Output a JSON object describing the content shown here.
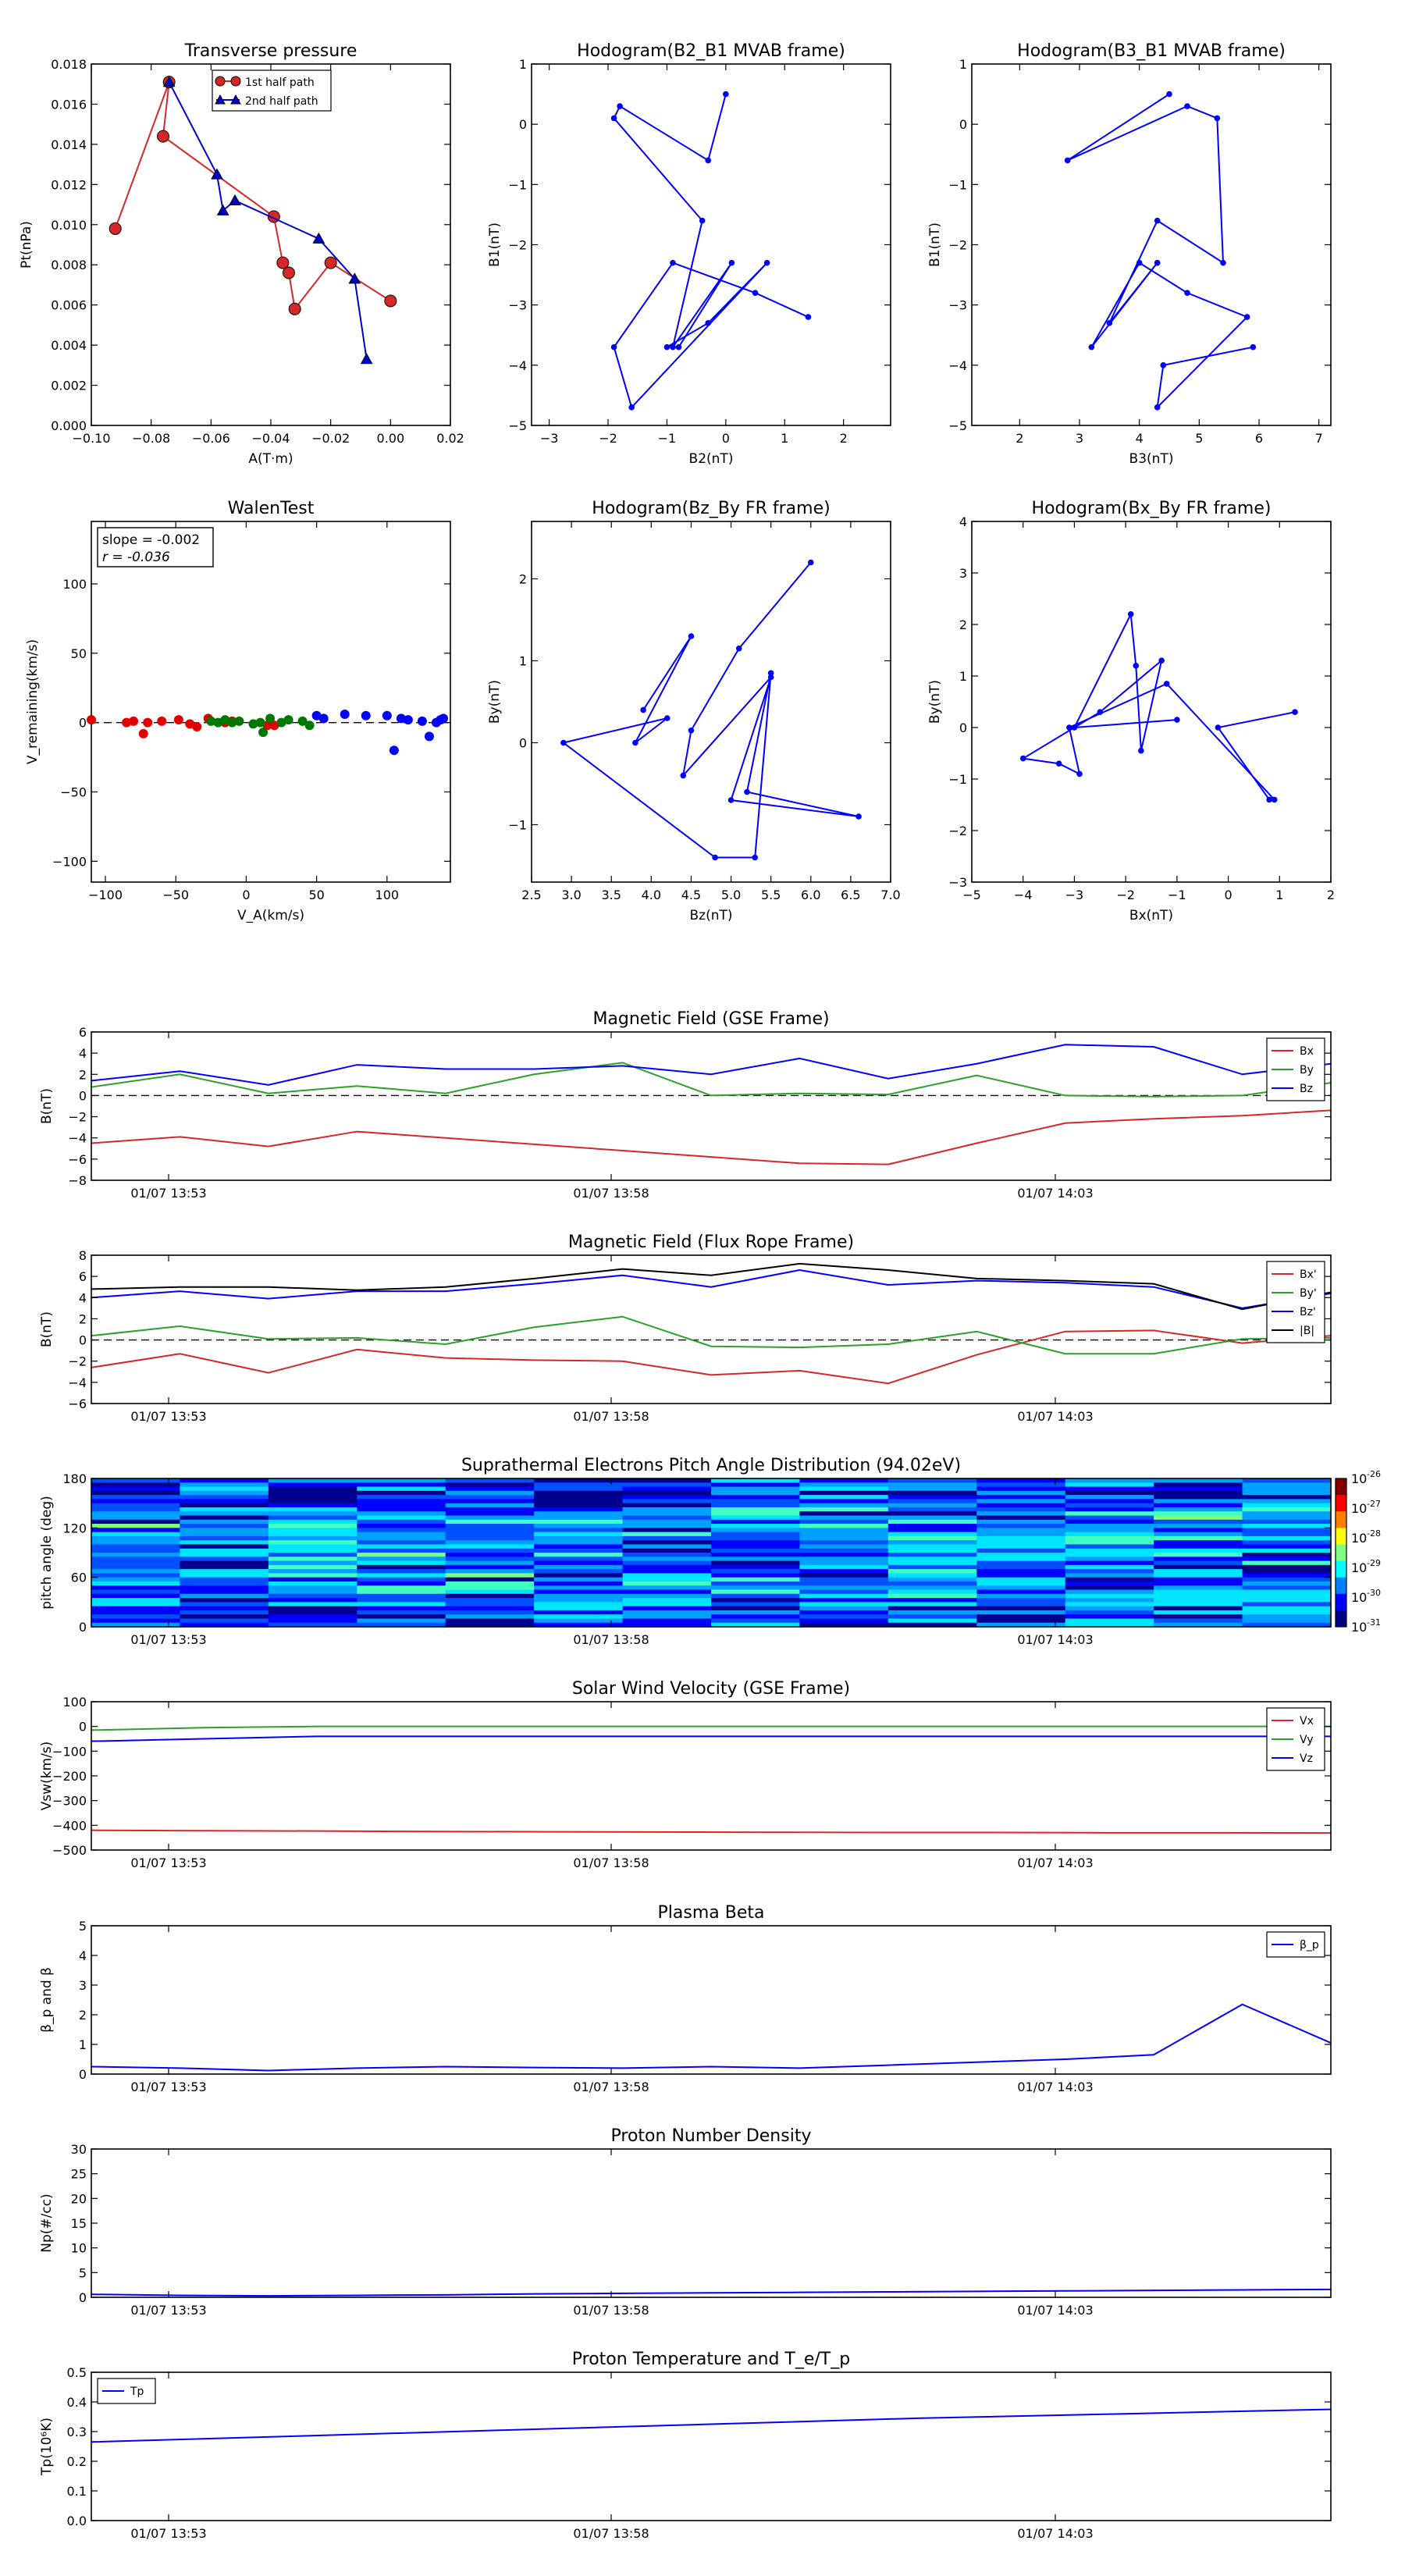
{
  "plots": {
    "transverse_pressure": {
      "type": "line",
      "title": "Transverse pressure",
      "xlabel": "A(T·m)",
      "ylabel": "Pt(nPa)",
      "xlim": [
        -0.1,
        0.02
      ],
      "ylim": [
        0.0,
        0.018
      ],
      "xticks": [
        "−0.10",
        "−0.08",
        "−0.06",
        "−0.04",
        "−0.02",
        "0.00",
        "0.02"
      ],
      "yticks": [
        "0.000",
        "0.002",
        "0.004",
        "0.006",
        "0.008",
        "0.010",
        "0.012",
        "0.014",
        "0.016",
        "0.018"
      ],
      "legend": [
        "1st half path",
        "2nd half path"
      ],
      "series": [
        {
          "name": "1st half path",
          "color": "#d62728",
          "marker": "circle",
          "x": [
            0.0,
            -0.02,
            -0.032,
            -0.034,
            -0.036,
            -0.039,
            -0.076,
            -0.074,
            -0.092
          ],
          "y": [
            0.0062,
            0.0081,
            0.0058,
            0.0076,
            0.0081,
            0.0104,
            0.0144,
            0.0171,
            0.0098
          ]
        },
        {
          "name": "2nd half path",
          "color": "#0000cc",
          "marker": "triangle",
          "x": [
            -0.074,
            -0.058,
            -0.056,
            -0.052,
            -0.024,
            -0.012,
            -0.008
          ],
          "y": [
            0.0171,
            0.0125,
            0.0107,
            0.0112,
            0.0093,
            0.0073,
            0.0033
          ]
        }
      ]
    },
    "hodo_b2b1": {
      "type": "line",
      "title": "Hodogram(B2_B1 MVAB frame)",
      "xlabel": "B2(nT)",
      "ylabel": "B1(nT)",
      "xlim": [
        -3.3,
        2.8
      ],
      "ylim": [
        -5,
        1
      ],
      "xticks": [
        "−3",
        "−2",
        "−1",
        "0",
        "1",
        "2"
      ],
      "yticks": [
        "−5",
        "−4",
        "−3",
        "−2",
        "−1",
        "0",
        "1"
      ],
      "series": [
        {
          "color": "#0000ff",
          "x": [
            0.0,
            -0.3,
            -1.8,
            -1.9,
            -0.4,
            -0.9,
            0.1,
            -0.8,
            -1.0,
            -0.3,
            0.7,
            -1.6,
            -1.9,
            -0.9,
            0.5,
            1.4
          ],
          "y": [
            0.5,
            -0.6,
            0.3,
            0.1,
            -1.6,
            -3.7,
            -2.3,
            -3.7,
            -3.7,
            -3.3,
            -2.3,
            -4.7,
            -3.7,
            -2.3,
            -2.8,
            -3.2
          ]
        }
      ]
    },
    "hodo_b3b1": {
      "type": "line",
      "title": "Hodogram(B3_B1 MVAB frame)",
      "xlabel": "B3(nT)",
      "ylabel": "B1(nT)",
      "xlim": [
        1.2,
        7.2
      ],
      "ylim": [
        -5,
        1
      ],
      "xticks": [
        "2",
        "3",
        "4",
        "5",
        "6",
        "7"
      ],
      "yticks": [
        "−5",
        "−4",
        "−3",
        "−2",
        "−1",
        "0",
        "1"
      ],
      "series": [
        {
          "color": "#0000ff",
          "x": [
            4.5,
            2.8,
            4.8,
            5.3,
            5.4,
            4.3,
            3.5,
            4.3,
            4.3,
            3.2,
            4.0,
            4.8,
            5.8,
            4.3,
            4.4,
            5.9
          ],
          "y": [
            0.5,
            -0.6,
            0.3,
            0.1,
            -2.3,
            -1.6,
            -3.3,
            -2.3,
            -2.3,
            -3.7,
            -2.3,
            -2.8,
            -3.2,
            -4.7,
            -4.0,
            -3.7
          ]
        }
      ]
    },
    "walen_test": {
      "type": "scatter",
      "title": "WalenTest",
      "xlabel": "V_A(km/s)",
      "ylabel": "V_remaining(km/s)",
      "xlim": [
        -110,
        145
      ],
      "ylim": [
        -115,
        145
      ],
      "xticks": [
        "−100",
        "−50",
        "0",
        "50",
        "100"
      ],
      "yticks": [
        "−100",
        "−50",
        "0",
        "50",
        "100"
      ],
      "annotation": [
        "slope = -0.002",
        "r = -0.036"
      ],
      "series": [
        {
          "color": "#e00000",
          "x": [
            -110,
            -85,
            -80,
            -73,
            -70,
            -60,
            -48,
            -40,
            -35,
            -27,
            -15,
            -10,
            15,
            20
          ],
          "y": [
            2,
            0,
            1,
            -8,
            0,
            1,
            2,
            -1,
            -3,
            3,
            0,
            1,
            -2,
            -2
          ]
        },
        {
          "color": "#007800",
          "x": [
            -25,
            -20,
            -15,
            -10,
            -5,
            5,
            10,
            12,
            17,
            25,
            30,
            40,
            45
          ],
          "y": [
            1,
            0,
            2,
            0,
            1,
            -1,
            0,
            -7,
            3,
            0,
            2,
            1,
            -2
          ]
        },
        {
          "color": "#0000ff",
          "x": [
            50,
            55,
            70,
            85,
            100,
            105,
            110,
            115,
            125,
            130,
            135,
            138,
            140
          ],
          "y": [
            5,
            3,
            6,
            5,
            5,
            -20,
            3,
            2,
            1,
            -10,
            0,
            2,
            3
          ]
        }
      ]
    },
    "hodo_bzby": {
      "type": "line",
      "title": "Hodogram(Bz_By FR frame)",
      "xlabel": "Bz(nT)",
      "ylabel": "By(nT)",
      "xlim": [
        2.5,
        7.0
      ],
      "ylim": [
        -1.7,
        2.7
      ],
      "xticks": [
        "2.5",
        "3.0",
        "3.5",
        "4.0",
        "4.5",
        "5.0",
        "5.5",
        "6.0",
        "6.5",
        "7.0"
      ],
      "yticks": [
        "−1",
        "0",
        "1",
        "2"
      ],
      "series": [
        {
          "color": "#0000ff",
          "x": [
            3.9,
            4.5,
            3.8,
            4.2,
            2.9,
            4.8,
            5.3,
            5.5,
            5.2,
            6.6,
            5.0,
            5.5,
            4.4,
            4.5,
            5.1,
            6.0
          ],
          "y": [
            0.4,
            1.3,
            0.0,
            0.3,
            0.0,
            -1.4,
            -1.4,
            0.85,
            -0.6,
            -0.9,
            -0.7,
            0.8,
            -0.4,
            0.15,
            1.15,
            2.2
          ]
        }
      ]
    },
    "hodo_bxby": {
      "type": "line",
      "title": "Hodogram(Bx_By FR frame)",
      "xlabel": "Bx(nT)",
      "ylabel": "By(nT)",
      "xlim": [
        -5,
        2
      ],
      "ylim": [
        -3,
        4
      ],
      "xticks": [
        "−5",
        "−4",
        "−3",
        "−2",
        "−1",
        "0",
        "1",
        "2"
      ],
      "yticks": [
        "−3",
        "−2",
        "−1",
        "0",
        "1",
        "2",
        "3",
        "4"
      ],
      "series": [
        {
          "color": "#0000ff",
          "x": [
            1.3,
            -0.2,
            0.8,
            0.9,
            -1.2,
            -3.1,
            -2.9,
            -3.3,
            -4.0,
            -2.5,
            -1.3,
            -1.7,
            -1.8,
            -1.9,
            -3.0,
            -1.0
          ],
          "y": [
            0.3,
            0.0,
            -1.4,
            -1.4,
            0.85,
            0.0,
            -0.9,
            -0.7,
            -0.6,
            0.3,
            1.3,
            -0.45,
            1.2,
            2.2,
            0.0,
            0.15
          ]
        }
      ]
    }
  },
  "timeseries": {
    "time_ticks": [
      "01/07 13:53",
      "01/07 13:58",
      "01/07 14:03"
    ],
    "panels": [
      {
        "type": "line",
        "title": "Magnetic Field (GSE Frame)",
        "ylabel": "B(nT)",
        "ylim": [
          -8,
          6
        ],
        "yticks": [
          "6",
          "4",
          "2",
          "0",
          "−2",
          "−4",
          "−6",
          "−8"
        ],
        "zero_line": true,
        "legend": [
          "Bx",
          "By",
          "Bz"
        ],
        "legend_pos": "top-right",
        "series": [
          {
            "name": "Bx",
            "color": "#d62728",
            "values": [
              -4.5,
              -3.9,
              -4.8,
              -3.4,
              -4.0,
              -4.6,
              -5.2,
              -5.8,
              -6.4,
              -6.5,
              -4.5,
              -2.6,
              -2.2,
              -1.9,
              -1.4
            ]
          },
          {
            "name": "By",
            "color": "#2ca02c",
            "values": [
              0.8,
              2.0,
              0.2,
              0.9,
              0.2,
              2.0,
              3.1,
              0.0,
              0.2,
              0.1,
              1.9,
              0.0,
              -0.1,
              0.0,
              1.2
            ]
          },
          {
            "name": "Bz",
            "color": "#0000ff",
            "values": [
              1.4,
              2.3,
              1.0,
              2.9,
              2.5,
              2.5,
              2.8,
              2.0,
              3.5,
              1.6,
              3.0,
              4.8,
              4.6,
              2.0,
              3.0
            ]
          }
        ]
      },
      {
        "type": "line",
        "title": "Magnetic Field (Flux Rope Frame)",
        "ylabel": "B(nT)",
        "ylim": [
          -6,
          8
        ],
        "yticks": [
          "8",
          "6",
          "4",
          "2",
          "0",
          "−2",
          "−4",
          "−6"
        ],
        "zero_line": true,
        "legend": [
          "Bx'",
          "By'",
          "Bz'",
          "|B|"
        ],
        "legend_pos": "top-right",
        "series": [
          {
            "name": "Bx'",
            "color": "#d62728",
            "values": [
              -2.6,
              -1.3,
              -3.1,
              -0.9,
              -1.7,
              -1.9,
              -2.0,
              -3.3,
              -2.9,
              -4.1,
              -1.4,
              0.8,
              0.9,
              -0.3,
              0.4
            ]
          },
          {
            "name": "By'",
            "color": "#2ca02c",
            "values": [
              0.4,
              1.3,
              0.1,
              0.2,
              -0.4,
              1.2,
              2.2,
              -0.6,
              -0.7,
              -0.4,
              0.8,
              -1.3,
              -1.3,
              0.1,
              0.2
            ]
          },
          {
            "name": "Bz'",
            "color": "#0000ff",
            "values": [
              4.0,
              4.6,
              3.9,
              4.6,
              4.6,
              5.3,
              6.1,
              5.0,
              6.6,
              5.2,
              5.6,
              5.4,
              5.0,
              3.0,
              4.4
            ]
          },
          {
            "name": "|B|",
            "color": "#000000",
            "values": [
              4.8,
              5.0,
              5.0,
              4.7,
              5.0,
              5.8,
              6.7,
              6.1,
              7.2,
              6.6,
              5.8,
              5.6,
              5.3,
              2.9,
              4.5
            ]
          }
        ]
      },
      {
        "type": "heatmap",
        "title": "Suprathermal Electrons Pitch Angle Distribution (94.02eV)",
        "ylabel": "pitch angle (deg)",
        "ylim": [
          0,
          180
        ],
        "yticks": [
          "180",
          "120",
          "60",
          "0"
        ],
        "colorbar_ticks": [
          "10",
          "10",
          "10",
          "10",
          "10",
          "10"
        ],
        "colorbar_exps": [
          "-26",
          "-27",
          "-28",
          "-29",
          "-30",
          "-31"
        ]
      },
      {
        "type": "line",
        "title": "Solar Wind Velocity (GSE Frame)",
        "ylabel": "Vsw(km/s)",
        "ylim": [
          -500,
          100
        ],
        "yticks": [
          "100",
          "0",
          "−100",
          "−200",
          "−300",
          "−400",
          "−500"
        ],
        "legend": [
          "Vx",
          "Vy",
          "Vz"
        ],
        "legend_pos": "top-right",
        "series": [
          {
            "name": "Vx",
            "color": "#d62728",
            "values": [
              -420,
              -422,
              -423,
              -425,
              -426,
              -427,
              -428,
              -429,
              -429,
              -430,
              -430,
              -431
            ]
          },
          {
            "name": "Vy",
            "color": "#2ca02c",
            "values": [
              -15,
              -5,
              0,
              0,
              0,
              0,
              0,
              0,
              0,
              0,
              0,
              0
            ]
          },
          {
            "name": "Vz",
            "color": "#0000ff",
            "values": [
              -60,
              -50,
              -40,
              -40,
              -40,
              -40,
              -40,
              -40,
              -40,
              -40,
              -40,
              -40
            ]
          }
        ]
      },
      {
        "type": "line",
        "title": "Plasma Beta",
        "ylabel": "β_p and β",
        "ylim": [
          0,
          5
        ],
        "yticks": [
          "5",
          "4",
          "3",
          "2",
          "1",
          "0"
        ],
        "legend": [
          "β_p"
        ],
        "legend_pos": "top-right",
        "series": [
          {
            "name": "β_p",
            "color": "#0000ff",
            "values": [
              0.25,
              0.2,
              0.12,
              0.2,
              0.25,
              0.22,
              0.2,
              0.25,
              0.2,
              0.3,
              0.4,
              0.5,
              0.65,
              2.35,
              1.05
            ]
          }
        ]
      },
      {
        "type": "line",
        "title": "Proton Number Density",
        "ylabel": "Np(#/cc)",
        "ylim": [
          0,
          30
        ],
        "yticks": [
          "30",
          "25",
          "20",
          "15",
          "10",
          "5",
          "0"
        ],
        "series": [
          {
            "color": "#0000ff",
            "values": [
              0.6,
              0.4,
              0.3,
              0.4,
              0.5,
              0.7,
              0.8,
              0.9,
              1.0,
              1.1,
              1.2,
              1.3,
              1.4,
              1.5,
              1.6
            ]
          }
        ]
      },
      {
        "type": "line",
        "title": "Proton Temperature and T_e/T_p",
        "ylabel": "Tp(10⁶K)",
        "ylim": [
          0,
          0.5
        ],
        "yticks": [
          "0.5",
          "0.4",
          "0.3",
          "0.2",
          "0.1",
          "0.0"
        ],
        "legend": [
          "Tp"
        ],
        "legend_pos": "top-left",
        "series": [
          {
            "name": "Tp",
            "color": "#0000ff",
            "values": [
              0.265,
              0.285,
              0.305,
              0.325,
              0.345,
              0.36,
              0.375
            ]
          }
        ]
      }
    ]
  }
}
